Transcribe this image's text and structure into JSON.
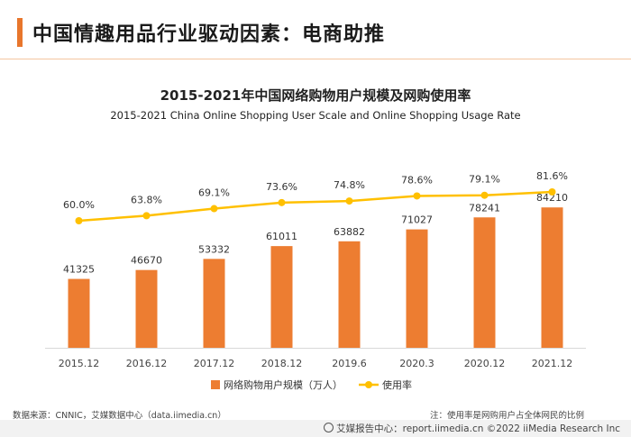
{
  "header": {
    "title": "中国情趣用品行业驱动因素：电商助推",
    "accent_color": "#e8762c"
  },
  "chart_data": {
    "type": "bar+line",
    "title": "2015-2021年中国网络购物用户规模及网购使用率",
    "subtitle": "2015-2021 China Online Shopping User Scale and Online Shopping Usage Rate",
    "categories": [
      "2015.12",
      "2016.12",
      "2017.12",
      "2018.12",
      "2019.6",
      "2020.3",
      "2020.12",
      "2021.12"
    ],
    "series": [
      {
        "name": "网络购物用户规模（万人）",
        "type": "bar",
        "color": "#ed7d31",
        "values": [
          41325,
          46670,
          53332,
          61011,
          63882,
          71027,
          78241,
          84210
        ],
        "labels": [
          "41325",
          "46670",
          "53332",
          "61011",
          "63882",
          "71027",
          "78241",
          "84210"
        ]
      },
      {
        "name": "使用率",
        "type": "line",
        "color": "#ffc000",
        "values": [
          60.0,
          63.8,
          69.1,
          73.6,
          74.8,
          78.6,
          79.1,
          81.6
        ],
        "labels": [
          "60.0%",
          "63.8%",
          "69.1%",
          "73.6%",
          "74.8%",
          "78.6%",
          "79.1%",
          "81.6%"
        ]
      }
    ],
    "legend_position": "bottom",
    "grid": false
  },
  "footer": {
    "source": "数据来源：CNNIC，艾媒数据中心（data.iimedia.cn）",
    "note": "注：使用率是网购用户占全体网民的比例",
    "copyright": "艾媒报告中心：report.iimedia.cn  ©2022  iiMedia Research  Inc"
  }
}
